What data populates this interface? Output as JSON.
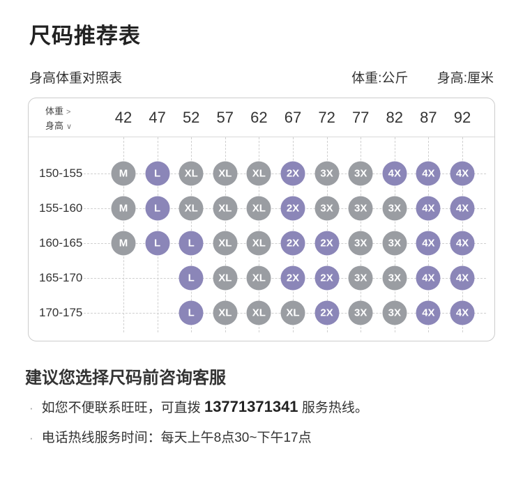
{
  "title": "尺码推荐表",
  "subtitle": "身高体重对照表",
  "units": {
    "weight": "体重:公斤",
    "height": "身高:厘米"
  },
  "icons": {
    "arrow_right_glyph": ">",
    "arrow_down_glyph": "∨"
  },
  "chart_data": {
    "type": "table",
    "title": "身高体重对照表",
    "col_header_label": "体重",
    "col_unit": "公斤",
    "row_header_label": "身高",
    "row_unit": "厘米",
    "weights": [
      "42",
      "47",
      "52",
      "57",
      "62",
      "67",
      "72",
      "77",
      "82",
      "87",
      "92"
    ],
    "rows": [
      {
        "height": "150-155",
        "sizes": [
          "M",
          "L",
          "XL",
          "XL",
          "XL",
          "2X",
          "3X",
          "3X",
          "4X",
          "4X",
          "4X"
        ]
      },
      {
        "height": "155-160",
        "sizes": [
          "M",
          "L",
          "XL",
          "XL",
          "XL",
          "2X",
          "3X",
          "3X",
          "3X",
          "4X",
          "4X"
        ]
      },
      {
        "height": "160-165",
        "sizes": [
          "M",
          "L",
          "L",
          "XL",
          "XL",
          "2X",
          "2X",
          "3X",
          "3X",
          "4X",
          "4X"
        ]
      },
      {
        "height": "165-170",
        "sizes": [
          null,
          null,
          "L",
          "XL",
          "XL",
          "2X",
          "2X",
          "3X",
          "3X",
          "4X",
          "4X"
        ]
      },
      {
        "height": "170-175",
        "sizes": [
          null,
          null,
          "L",
          "XL",
          "XL",
          "XL",
          "2X",
          "3X",
          "3X",
          "4X",
          "4X"
        ]
      }
    ],
    "size_colors": {
      "M": "#9a9da2",
      "L": "#8b86b8",
      "XL": "#9a9da2",
      "2X": "#8b86b8",
      "3X": "#9a9da2",
      "4X": "#8b86b8"
    }
  },
  "advice": {
    "bullet_glyph": "·",
    "heading": "建议您选择尺码前咨询客服",
    "line1_prefix": "如您不便联系旺旺，可直拨 ",
    "line1_phone": "13771371341",
    "line1_suffix": " 服务热线。",
    "line2": "电话热线服务时间：每天上午8点30~下午17点"
  }
}
